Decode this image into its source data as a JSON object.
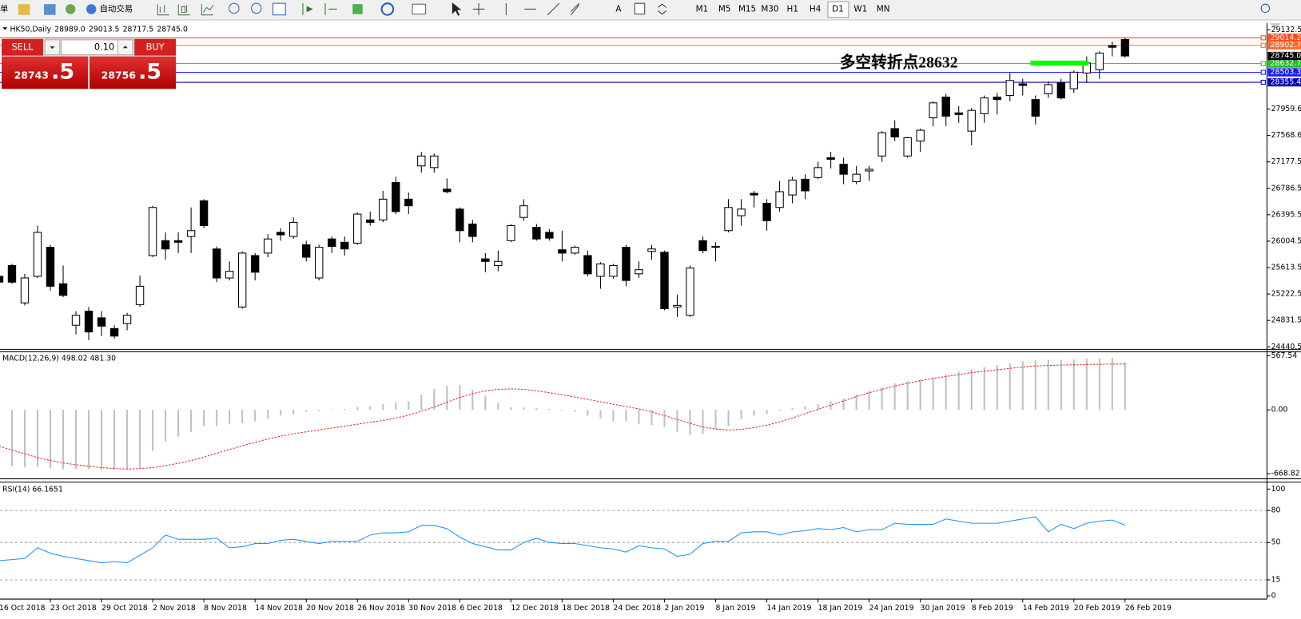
{
  "toolbar": {
    "left_label": "单",
    "auto_trading": "自动交易",
    "text_tool": "A",
    "timeframes": [
      "M1",
      "M5",
      "M15",
      "M30",
      "H1",
      "H4",
      "D1",
      "W1",
      "MN"
    ],
    "active_timeframe": "D1"
  },
  "trade_panel": {
    "sell": "SELL",
    "lot": "0.10",
    "buy": "BUY",
    "bid_main": "28743",
    "bid_frac": ".5",
    "ask_main": "28756",
    "ask_frac": ".5"
  },
  "chart_data": [
    {
      "type": "candlestick",
      "title": "HK50,Daily",
      "last_bar_labels": [
        "28989.0",
        "29013.5",
        "28717.5",
        "28745.0"
      ],
      "categories": [
        "16 Oct 2018",
        null,
        null,
        null,
        "23 Oct 2018",
        null,
        null,
        null,
        "29 Oct 2018",
        null,
        null,
        null,
        "2 Nov 2018",
        null,
        null,
        null,
        "8 Nov 2018",
        null,
        null,
        null,
        "14 Nov 2018",
        null,
        null,
        null,
        "20 Nov 2018",
        null,
        null,
        null,
        "26 Nov 2018",
        null,
        null,
        null,
        "30 Nov 2018",
        null,
        null,
        null,
        "6 Dec 2018",
        null,
        null,
        null,
        "12 Dec 2018",
        null,
        null,
        null,
        "18 Dec 2018",
        null,
        null,
        null,
        "24 Dec 2018",
        null,
        null,
        null,
        "2 Jan 2019",
        null,
        null,
        null,
        "8 Jan 2019",
        null,
        null,
        null,
        "14 Jan 2019",
        null,
        null,
        null,
        "18 Jan 2019",
        null,
        null,
        null,
        "24 Jan 2019",
        null,
        null,
        null,
        "30 Jan 2019",
        null,
        null,
        null,
        "8 Feb 2019",
        null,
        null,
        null,
        "14 Feb 2019",
        null,
        null,
        null,
        "20 Feb 2019",
        null,
        null,
        null,
        "26 Feb 2019"
      ],
      "open": [
        25484,
        25644,
        25091,
        25484,
        25914,
        25374,
        24760,
        24968,
        24870,
        24711,
        24784,
        25066,
        25791,
        26012,
        26012,
        26074,
        26602,
        25889,
        25460,
        25030,
        25791,
        25828,
        26135,
        26074,
        25951,
        25460,
        26037,
        25988,
        25975,
        26319,
        26319,
        26872,
        26626,
        27118,
        27093,
        26774,
        26479,
        26258,
        25742,
        25644,
        26012,
        26356,
        26209,
        26135,
        25877,
        25828,
        25791,
        25484,
        25484,
        25914,
        25521,
        25853,
        25840,
        25030,
        24907,
        26012,
        25926,
        26160,
        26381,
        26712,
        26565,
        26503,
        26688,
        26921,
        26946,
        27240,
        27142,
        26884,
        27044,
        27265,
        27670,
        27265,
        27486,
        27830,
        28137,
        27903,
        27633,
        27891,
        28137,
        28161,
        28333,
        28100,
        28186,
        28345,
        28260,
        28493,
        28542,
        28898,
        28989
      ],
      "high": [
        25545,
        25668,
        25521,
        26234,
        25951,
        25644,
        24968,
        25030,
        24968,
        24760,
        24944,
        25496,
        26528,
        26135,
        26135,
        26503,
        26626,
        25926,
        25705,
        25853,
        25828,
        26111,
        26197,
        26356,
        26012,
        25951,
        26074,
        26074,
        26430,
        26442,
        26749,
        26958,
        26725,
        27326,
        27302,
        26933,
        26503,
        26319,
        25828,
        25865,
        26258,
        26626,
        26258,
        26184,
        26160,
        25939,
        25865,
        25693,
        25668,
        25951,
        25705,
        25951,
        25865,
        25214,
        25644,
        26074,
        25988,
        26626,
        26626,
        26749,
        26626,
        26896,
        26958,
        26995,
        27179,
        27326,
        27240,
        27118,
        27118,
        27633,
        27793,
        27547,
        27670,
        28075,
        28186,
        28002,
        27977,
        28161,
        28198,
        28493,
        28407,
        28161,
        28370,
        28407,
        28530,
        28738,
        28812,
        28959,
        29013.5
      ],
      "low": [
        25337,
        25374,
        25054,
        25460,
        25275,
        25177,
        24625,
        24538,
        24600,
        24563,
        24686,
        25030,
        25767,
        25730,
        25828,
        25828,
        26197,
        25398,
        25423,
        25005,
        25423,
        25767,
        26012,
        26037,
        25705,
        25423,
        25828,
        25791,
        25951,
        26234,
        26283,
        26405,
        26405,
        27019,
        27019,
        26712,
        25988,
        25988,
        25545,
        25558,
        25988,
        26307,
        26012,
        26012,
        25705,
        25803,
        25484,
        25300,
        25447,
        25337,
        25460,
        25730,
        24981,
        24883,
        24883,
        25828,
        25705,
        26135,
        26234,
        26503,
        26160,
        26442,
        26565,
        26626,
        26921,
        27081,
        26847,
        26847,
        26896,
        27179,
        27486,
        27240,
        27326,
        27707,
        27707,
        27756,
        27424,
        27756,
        27879,
        28075,
        28161,
        27731,
        28124,
        28100,
        28198,
        28345,
        28407,
        28738,
        28717.5
      ],
      "close": [
        25398,
        25398,
        25460,
        26135,
        25337,
        25202,
        24907,
        24661,
        24747,
        24600,
        24907,
        25337,
        26503,
        25889,
        25988,
        26160,
        26234,
        25460,
        25558,
        25828,
        25545,
        26037,
        26098,
        26283,
        25767,
        25914,
        25926,
        25889,
        26405,
        26283,
        26626,
        26442,
        26528,
        27265,
        27265,
        26737,
        26160,
        26074,
        25705,
        25705,
        26234,
        26528,
        26037,
        26049,
        25828,
        25914,
        25521,
        25668,
        25644,
        25423,
        25582,
        25889,
        25005,
        25054,
        25607,
        25865,
        25914,
        26503,
        26479,
        26688,
        26307,
        26737,
        26909,
        26749,
        27093,
        27216,
        26995,
        26995,
        27068,
        27609,
        27547,
        27535,
        27646,
        28051,
        27854,
        27879,
        27940,
        28124,
        28100,
        28382,
        28309,
        27854,
        28321,
        28124,
        28505,
        28640,
        28788,
        28874,
        28745
      ],
      "up_color": "#ffffff",
      "down_color": "#000000",
      "wick_color": "#000000",
      "ylim": [
        24416,
        29205
      ],
      "yticks": [
        {
          "value": 29132.5,
          "label": "29132.5"
        },
        27959.6,
        27568.6,
        27177.5,
        26786.5,
        26395.5,
        26004.5,
        25613.5,
        25222.5,
        24831.5,
        24440.5
      ],
      "price_levels": [
        {
          "value": 29014.2,
          "color": "#ff4a1c"
        },
        {
          "value": 28902.7,
          "color": "#ff6a2a"
        },
        {
          "value": 28632.7,
          "color": "#22c322"
        },
        {
          "value": 28503.3,
          "color": "#1a1aff"
        },
        {
          "value": 28355.4,
          "color": "#0000b4"
        }
      ],
      "current_price": {
        "value": 28745,
        "label": "28745.0"
      },
      "annotation": "多空转折点28632",
      "annotation_color": "#33ff33"
    },
    {
      "type": "macd",
      "title": "MACD(12,26,9) 498.02 481.30",
      "series": [
        {
          "kind": "histogram",
          "color": "#c0c0c0",
          "values": [
            -580,
            -590,
            -600,
            -600,
            -610,
            -620,
            -620,
            -620,
            -625,
            -625,
            -620,
            -610,
            -430,
            -330,
            -280,
            -230,
            -170,
            -170,
            -150,
            -140,
            -120,
            -90,
            -60,
            -50,
            -20,
            -10,
            5,
            10,
            30,
            40,
            60,
            80,
            90,
            160,
            220,
            250,
            260,
            210,
            150,
            70,
            30,
            30,
            20,
            10,
            -10,
            -20,
            -60,
            -90,
            -120,
            -120,
            -150,
            -160,
            -180,
            -230,
            -260,
            -250,
            -200,
            -170,
            -100,
            -60,
            -40,
            -10,
            20,
            40,
            60,
            90,
            120,
            160,
            200,
            240,
            280,
            300,
            320,
            340,
            370,
            400,
            430,
            450,
            470,
            490,
            510,
            520,
            525,
            525,
            530,
            535,
            540,
            545,
            498.02
          ]
        },
        {
          "kind": "dotted",
          "color": "#ff0000",
          "values": [
            -380,
            -420,
            -460,
            -500,
            -530,
            -555,
            -575,
            -590,
            -605,
            -615,
            -620,
            -615,
            -605,
            -585,
            -560,
            -530,
            -495,
            -455,
            -415,
            -375,
            -340,
            -305,
            -275,
            -250,
            -230,
            -210,
            -190,
            -170,
            -150,
            -130,
            -110,
            -85,
            -55,
            -15,
            30,
            80,
            130,
            170,
            200,
            215,
            220,
            215,
            200,
            180,
            160,
            135,
            110,
            85,
            60,
            35,
            10,
            -20,
            -60,
            -100,
            -140,
            -180,
            -200,
            -210,
            -205,
            -185,
            -160,
            -125,
            -85,
            -40,
            5,
            50,
            95,
            140,
            180,
            215,
            250,
            280,
            305,
            330,
            350,
            370,
            390,
            405,
            420,
            435,
            450,
            460,
            465,
            470,
            472,
            475,
            478,
            480,
            481.3
          ]
        }
      ],
      "ylim": [
        -713,
        600
      ],
      "yticks": [
        567.54,
        {
          "value": 0,
          "label": "0.00"
        },
        -668.82
      ]
    },
    {
      "type": "line",
      "title": "RSI(14) 66.1651",
      "color": "#1e90ff",
      "values": [
        33,
        34,
        35,
        45,
        40,
        37,
        35,
        33,
        31,
        32,
        31,
        38,
        45,
        57,
        53,
        53,
        53,
        54,
        45,
        46,
        49,
        49,
        52,
        53,
        51,
        49,
        51,
        51,
        51,
        57,
        59,
        59,
        60,
        66,
        66,
        63,
        55,
        49,
        46,
        43,
        43,
        50,
        54,
        50,
        49,
        49,
        47,
        45,
        44,
        41,
        47,
        45,
        44,
        37,
        39,
        49,
        51,
        51,
        59,
        60,
        60,
        57,
        60,
        61,
        63,
        62,
        64,
        60,
        62,
        62,
        68,
        67,
        67,
        67,
        72,
        70,
        68,
        68,
        68,
        70,
        72,
        74,
        60,
        67,
        63,
        68,
        70,
        71,
        66.1651
      ],
      "ylim": [
        -3,
        105
      ],
      "yticks": [
        100,
        80,
        50,
        15,
        0
      ],
      "levels": [
        80,
        50,
        15
      ]
    }
  ]
}
